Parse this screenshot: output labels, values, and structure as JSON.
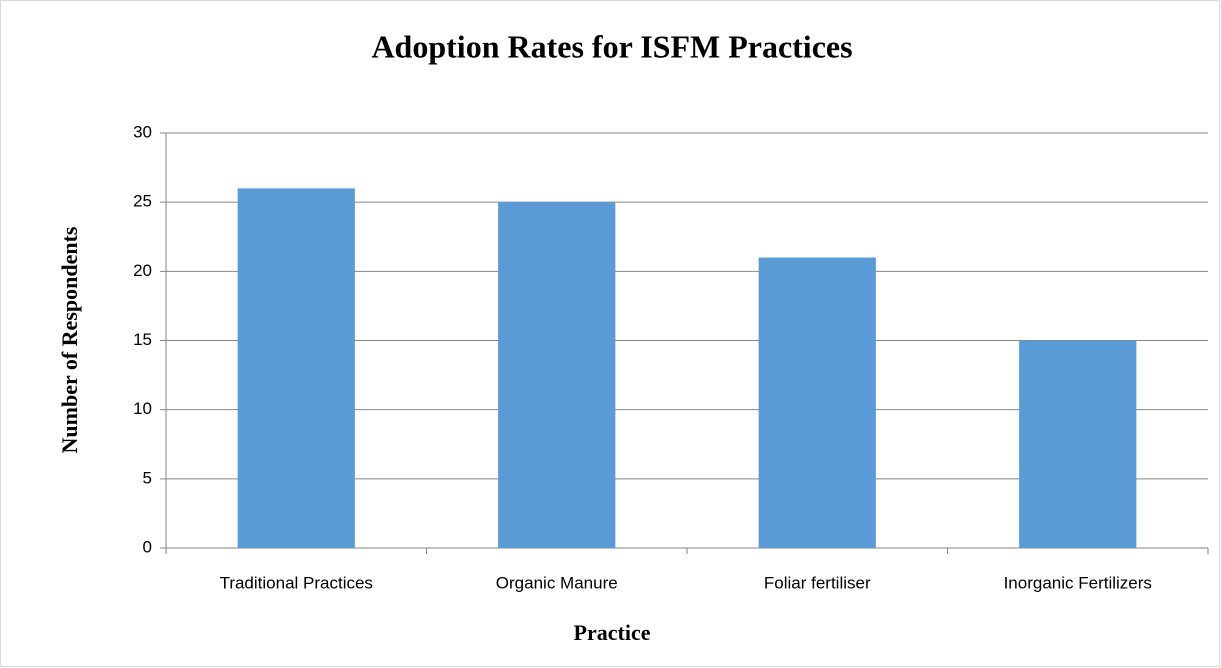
{
  "chart_data": {
    "type": "bar",
    "title": "Adoption Rates for ISFM Practices",
    "x_label": "Practice",
    "y_label": "Number of  Respondents",
    "categories": [
      "Traditional Practices",
      "Organic Manure",
      "Foliar fertiliser",
      "Inorganic Fertilizers"
    ],
    "values": [
      26,
      25,
      21,
      15
    ],
    "color": "#5b9bd5",
    "ylim": [
      0,
      30
    ],
    "yticks": [
      0,
      5,
      10,
      15,
      20,
      25,
      30
    ],
    "grid": true
  }
}
